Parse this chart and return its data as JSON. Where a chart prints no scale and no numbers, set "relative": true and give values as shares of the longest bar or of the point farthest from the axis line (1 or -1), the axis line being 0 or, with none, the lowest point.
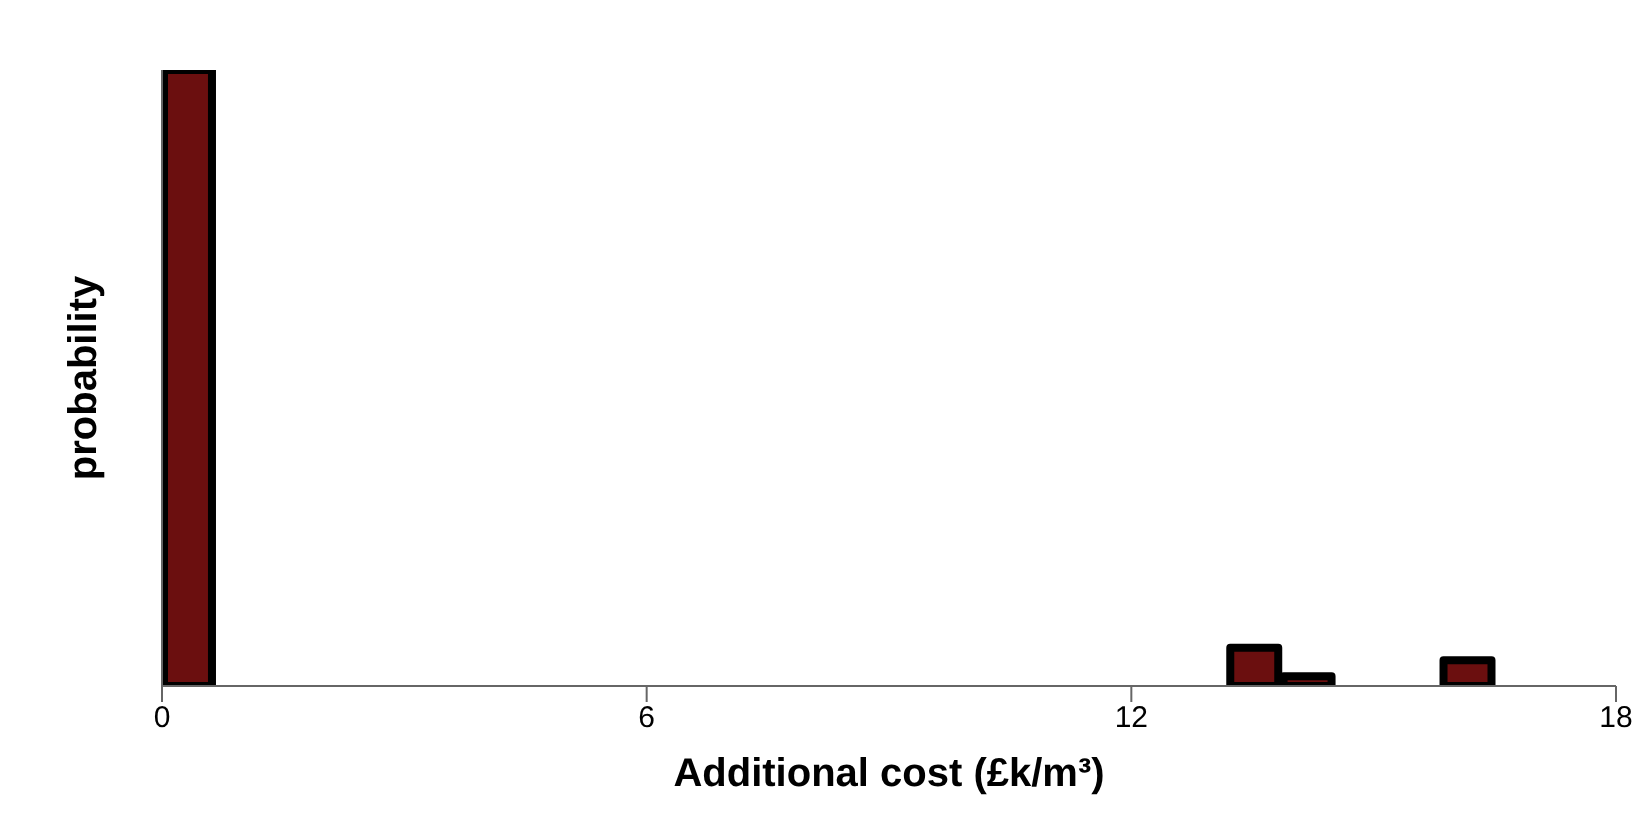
{
  "chart_data": {
    "type": "bar",
    "xlabel": "Additional cost (£k/m³)",
    "ylabel": "probability",
    "relative": true,
    "color": "#6b0f0f",
    "x": [
      0.33,
      0.99,
      1.65,
      2.31,
      2.97,
      3.63,
      4.29,
      4.95,
      5.61,
      6.27,
      6.93,
      7.59,
      8.25,
      8.91,
      9.57,
      10.23,
      10.89,
      11.55,
      12.21,
      12.87,
      13.53,
      14.19,
      14.85,
      15.51,
      16.17
    ],
    "values": [
      1,
      0,
      0,
      0,
      0,
      0,
      0,
      0,
      0,
      0,
      0,
      0,
      0,
      0,
      0,
      0,
      0,
      0,
      0,
      0,
      0.062,
      0.016,
      0,
      0,
      0.042
    ],
    "xlim": [
      0,
      18
    ],
    "xticks": [
      0,
      6,
      12,
      18
    ]
  }
}
